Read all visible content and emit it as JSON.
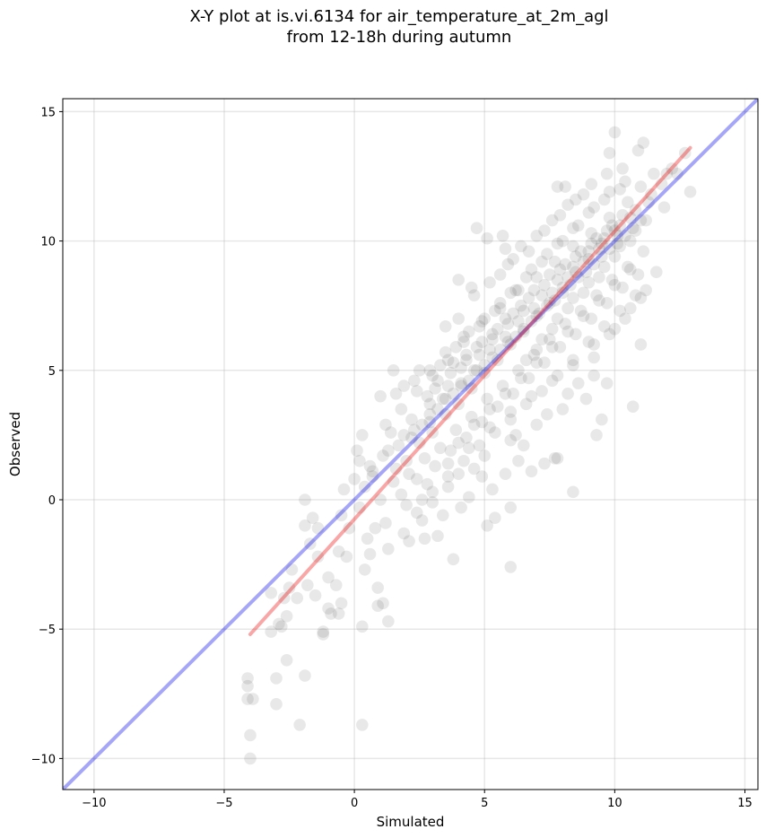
{
  "chart_data": {
    "type": "scatter",
    "title": "X-Y plot at is.vi.6134 for air_temperature_at_2m_agl",
    "subtitle": "from 12-18h during autumn",
    "xlabel": "Simulated",
    "ylabel": "Observed",
    "xlim": [
      -11.2,
      15.5
    ],
    "ylim": [
      -11.2,
      15.5
    ],
    "xticks": [
      -10,
      -5,
      0,
      5,
      10,
      15
    ],
    "yticks": [
      -10,
      -5,
      0,
      5,
      10,
      15
    ],
    "xtick_labels": [
      "−10",
      "−5",
      "0",
      "5",
      "10",
      "15"
    ],
    "ytick_labels": [
      "−10",
      "−5",
      "0",
      "5",
      "10",
      "15"
    ],
    "grid": true,
    "point_color": "#000000",
    "point_opacity": 0.09,
    "identity_line": {
      "color": "#0000ee",
      "opacity": 0.35,
      "from": [
        -11.2,
        -11.2
      ],
      "to": [
        15.5,
        15.5
      ]
    },
    "fit_line": {
      "color": "#ee0000",
      "opacity": 0.35,
      "from": [
        -4.0,
        -5.2
      ],
      "to": [
        12.9,
        13.6
      ]
    },
    "points": [
      [
        -4.0,
        -10.0
      ],
      [
        -4.0,
        -9.1
      ],
      [
        -4.1,
        -7.7
      ],
      [
        -3.9,
        -7.7
      ],
      [
        -4.1,
        -7.2
      ],
      [
        -4.1,
        -6.9
      ],
      [
        -3.0,
        -7.9
      ],
      [
        -2.1,
        -8.7
      ],
      [
        0.3,
        -8.7
      ],
      [
        -2.6,
        -6.2
      ],
      [
        -1.9,
        -6.8
      ],
      [
        -3.0,
        -6.9
      ],
      [
        -3.2,
        -5.1
      ],
      [
        -2.9,
        -4.8
      ],
      [
        -2.8,
        -4.9
      ],
      [
        -2.6,
        -4.5
      ],
      [
        -1.2,
        -5.1
      ],
      [
        -1.2,
        -5.2
      ],
      [
        -0.6,
        -4.4
      ],
      [
        -0.9,
        -4.4
      ],
      [
        -2.5,
        -3.4
      ],
      [
        -3.2,
        -3.6
      ],
      [
        -2.7,
        -3.8
      ],
      [
        -2.2,
        -3.8
      ],
      [
        -1.8,
        -3.3
      ],
      [
        -1.5,
        -3.7
      ],
      [
        -1.0,
        -4.2
      ],
      [
        -0.5,
        -4.0
      ],
      [
        -1.0,
        -3.0
      ],
      [
        -0.7,
        -3.3
      ],
      [
        -2.4,
        -2.7
      ],
      [
        -1.4,
        -2.2
      ],
      [
        -1.7,
        -1.7
      ],
      [
        -1.4,
        -1.1
      ],
      [
        -1.6,
        -0.7
      ],
      [
        -1.9,
        -1.0
      ],
      [
        -1.9,
        0.0
      ],
      [
        -0.6,
        -2.0
      ],
      [
        -0.5,
        -0.6
      ],
      [
        -0.4,
        0.4
      ],
      [
        0.4,
        -2.7
      ],
      [
        0.3,
        -4.9
      ],
      [
        0.9,
        -3.4
      ],
      [
        0.9,
        -4.1
      ],
      [
        1.3,
        -4.7
      ],
      [
        1.1,
        -4.0
      ],
      [
        6.0,
        -2.6
      ],
      [
        8.4,
        0.3
      ],
      [
        10.7,
        3.6
      ],
      [
        11.0,
        6.0
      ],
      [
        11.0,
        7.8
      ],
      [
        12.9,
        11.9
      ],
      [
        7.7,
        1.6
      ],
      [
        9.3,
        2.5
      ],
      [
        9.5,
        3.1
      ],
      [
        0.1,
        1.9
      ],
      [
        0.2,
        1.5
      ],
      [
        0.7,
        1.1
      ],
      [
        0.4,
        0.5
      ],
      [
        0.2,
        -0.3
      ],
      [
        -0.2,
        -1.1
      ],
      [
        0.3,
        2.5
      ],
      [
        1.0,
        4.0
      ],
      [
        1.5,
        5.0
      ],
      [
        1.6,
        4.1
      ],
      [
        4.0,
        8.5
      ],
      [
        4.5,
        8.2
      ],
      [
        4.7,
        10.5
      ],
      [
        5.1,
        10.1
      ],
      [
        5.7,
        10.2
      ],
      [
        5.8,
        9.7
      ],
      [
        6.1,
        9.3
      ],
      [
        7.8,
        12.1
      ],
      [
        8.1,
        12.1
      ],
      [
        10.0,
        14.2
      ],
      [
        9.8,
        13.4
      ],
      [
        10.3,
        12.8
      ],
      [
        10.9,
        13.5
      ],
      [
        11.1,
        13.8
      ],
      [
        12.0,
        12.6
      ],
      [
        12.2,
        12.8
      ],
      [
        12.7,
        13.4
      ],
      [
        8.9,
        3.9
      ],
      [
        9.2,
        4.8
      ],
      [
        9.7,
        4.5
      ],
      [
        6.2,
        2.5
      ],
      [
        6.8,
        1.1
      ],
      [
        7.3,
        1.4
      ],
      [
        7.8,
        1.6
      ],
      [
        5.1,
        -1.0
      ],
      [
        3.8,
        -2.3
      ],
      [
        3.2,
        -1.4
      ],
      [
        2.1,
        -1.6
      ],
      [
        1.3,
        -1.9
      ],
      [
        0.6,
        -2.1
      ],
      [
        2.7,
        -1.5
      ],
      [
        5.4,
        -0.7
      ],
      [
        6.0,
        -0.3
      ],
      [
        5.3,
        0.4
      ],
      [
        4.9,
        0.9
      ],
      [
        6.3,
        1.5
      ],
      [
        4.1,
        -0.3
      ],
      [
        -0.3,
        -2.2
      ],
      [
        0.8,
        -1.1
      ],
      [
        1.9,
        -1.3
      ],
      [
        2.6,
        -0.8
      ],
      [
        3.4,
        -0.6
      ],
      [
        4.4,
        0.1
      ],
      [
        0.7,
        0.9
      ],
      [
        1.1,
        1.7
      ],
      [
        1.4,
        2.6
      ],
      [
        2.2,
        3.1
      ],
      [
        2.9,
        3.7
      ],
      [
        3.6,
        4.4
      ],
      [
        4.1,
        5.1
      ],
      [
        4.8,
        5.6
      ],
      [
        5.3,
        6.2
      ],
      [
        5.9,
        6.8
      ],
      [
        6.5,
        7.3
      ],
      [
        7.2,
        7.9
      ],
      [
        7.8,
        8.5
      ],
      [
        8.4,
        9.0
      ],
      [
        9.0,
        9.6
      ],
      [
        9.6,
        10.1
      ],
      [
        10.2,
        10.6
      ],
      [
        10.8,
        11.2
      ],
      [
        11.4,
        11.8
      ],
      [
        11.8,
        12.2
      ],
      [
        1.8,
        0.2
      ],
      [
        2.4,
        0.8
      ],
      [
        3.1,
        1.3
      ],
      [
        3.7,
        1.9
      ],
      [
        4.3,
        2.4
      ],
      [
        4.9,
        3.0
      ],
      [
        5.5,
        3.6
      ],
      [
        6.1,
        4.1
      ],
      [
        6.7,
        4.7
      ],
      [
        7.3,
        5.3
      ],
      [
        7.9,
        5.9
      ],
      [
        8.5,
        6.4
      ],
      [
        9.1,
        7.0
      ],
      [
        9.7,
        7.6
      ],
      [
        10.3,
        8.2
      ],
      [
        10.9,
        8.7
      ],
      [
        1.2,
        2.9
      ],
      [
        1.8,
        3.5
      ],
      [
        2.4,
        4.2
      ],
      [
        3.0,
        4.8
      ],
      [
        3.6,
        5.4
      ],
      [
        4.2,
        6.1
      ],
      [
        4.8,
        6.7
      ],
      [
        5.4,
        7.3
      ],
      [
        6.0,
        8.0
      ],
      [
        6.6,
        8.6
      ],
      [
        7.2,
        9.2
      ],
      [
        7.8,
        9.9
      ],
      [
        8.4,
        10.5
      ],
      [
        9.0,
        11.1
      ],
      [
        9.6,
        11.6
      ],
      [
        10.2,
        12.0
      ],
      [
        2.0,
        1.5
      ],
      [
        2.5,
        2.2
      ],
      [
        3.0,
        2.6
      ],
      [
        3.5,
        3.3
      ],
      [
        4.0,
        3.7
      ],
      [
        4.5,
        4.3
      ],
      [
        5.0,
        4.9
      ],
      [
        5.5,
        5.4
      ],
      [
        6.0,
        6.0
      ],
      [
        6.5,
        6.5
      ],
      [
        7.0,
        7.1
      ],
      [
        7.5,
        7.6
      ],
      [
        8.0,
        8.2
      ],
      [
        8.5,
        8.8
      ],
      [
        9.0,
        9.3
      ],
      [
        9.5,
        9.9
      ],
      [
        10.0,
        10.4
      ],
      [
        2.8,
        4.0
      ],
      [
        3.3,
        5.2
      ],
      [
        3.9,
        5.9
      ],
      [
        4.4,
        6.5
      ],
      [
        5.0,
        7.0
      ],
      [
        5.6,
        7.6
      ],
      [
        6.2,
        8.1
      ],
      [
        6.8,
        8.9
      ],
      [
        7.4,
        9.5
      ],
      [
        8.0,
        10.0
      ],
      [
        8.6,
        10.6
      ],
      [
        9.2,
        11.3
      ],
      [
        9.8,
        11.9
      ],
      [
        10.4,
        12.3
      ],
      [
        1.5,
        0.7
      ],
      [
        2.1,
        1.0
      ],
      [
        2.7,
        1.6
      ],
      [
        3.3,
        2.0
      ],
      [
        3.9,
        2.7
      ],
      [
        4.5,
        3.2
      ],
      [
        5.1,
        3.9
      ],
      [
        5.7,
        4.4
      ],
      [
        6.3,
        5.0
      ],
      [
        6.9,
        5.6
      ],
      [
        7.5,
        6.2
      ],
      [
        8.1,
        6.8
      ],
      [
        8.7,
        7.3
      ],
      [
        9.3,
        7.9
      ],
      [
        9.9,
        8.5
      ],
      [
        10.5,
        9.0
      ],
      [
        11.1,
        9.6
      ],
      [
        3.5,
        6.7
      ],
      [
        4.0,
        7.0
      ],
      [
        5.6,
        8.7
      ],
      [
        6.4,
        9.8
      ],
      [
        7.0,
        10.2
      ],
      [
        7.6,
        10.8
      ],
      [
        8.2,
        11.4
      ],
      [
        8.8,
        11.8
      ],
      [
        3.0,
        0.3
      ],
      [
        4.0,
        1.0
      ],
      [
        5.0,
        1.7
      ],
      [
        6.0,
        2.3
      ],
      [
        7.0,
        2.9
      ],
      [
        8.0,
        3.5
      ],
      [
        8.6,
        4.5
      ],
      [
        9.2,
        5.5
      ],
      [
        9.8,
        6.4
      ],
      [
        10.4,
        7.0
      ],
      [
        5.8,
        1.0
      ],
      [
        6.5,
        2.1
      ],
      [
        7.4,
        3.3
      ],
      [
        8.2,
        4.1
      ],
      [
        2.6,
        0.0
      ],
      [
        3.6,
        0.5
      ],
      [
        4.6,
        1.2
      ],
      [
        1.0,
        0.0
      ],
      [
        1.6,
        1.2
      ],
      [
        2.2,
        2.4
      ],
      [
        2.9,
        3.0
      ],
      [
        3.4,
        3.9
      ],
      [
        4.1,
        4.5
      ],
      [
        4.6,
        5.0
      ],
      [
        5.2,
        5.8
      ],
      [
        5.8,
        6.3
      ],
      [
        6.3,
        6.9
      ],
      [
        6.9,
        7.4
      ],
      [
        7.6,
        8.0
      ],
      [
        8.2,
        8.6
      ],
      [
        8.8,
        9.2
      ],
      [
        9.4,
        9.7
      ],
      [
        10.1,
        10.2
      ],
      [
        10.6,
        10.9
      ],
      [
        11.3,
        11.5
      ],
      [
        4.3,
        5.4
      ],
      [
        4.7,
        5.9
      ],
      [
        5.3,
        6.4
      ],
      [
        5.8,
        7.0
      ],
      [
        6.4,
        7.5
      ],
      [
        6.9,
        8.1
      ],
      [
        7.5,
        8.7
      ],
      [
        8.1,
        9.1
      ],
      [
        8.7,
        9.6
      ],
      [
        9.3,
        10.1
      ],
      [
        9.9,
        10.6
      ],
      [
        0.5,
        -1.5
      ],
      [
        1.2,
        -0.9
      ],
      [
        2.0,
        -0.2
      ],
      [
        2.8,
        0.6
      ],
      [
        3.6,
        1.4
      ],
      [
        4.4,
        2.0
      ],
      [
        5.2,
        2.8
      ],
      [
        6.0,
        3.4
      ],
      [
        6.8,
        4.0
      ],
      [
        7.6,
        4.6
      ],
      [
        8.4,
        5.2
      ],
      [
        9.2,
        6.0
      ],
      [
        10.0,
        6.6
      ],
      [
        10.6,
        7.4
      ],
      [
        11.2,
        8.1
      ],
      [
        11.6,
        8.8
      ],
      [
        2.3,
        4.6
      ],
      [
        2.9,
        5.0
      ],
      [
        3.5,
        5.7
      ],
      [
        4.2,
        6.3
      ],
      [
        4.9,
        6.9
      ],
      [
        5.6,
        7.4
      ],
      [
        6.3,
        8.1
      ],
      [
        7.0,
        8.6
      ],
      [
        7.7,
        9.2
      ],
      [
        8.4,
        9.8
      ],
      [
        9.1,
        10.3
      ],
      [
        9.8,
        10.9
      ],
      [
        10.5,
        11.5
      ],
      [
        11.0,
        12.1
      ],
      [
        0.0,
        0.8
      ],
      [
        0.6,
        1.3
      ],
      [
        1.3,
        1.9
      ],
      [
        1.9,
        2.5
      ],
      [
        2.6,
        2.9
      ],
      [
        3.2,
        3.5
      ],
      [
        3.8,
        4.1
      ],
      [
        4.4,
        4.6
      ],
      [
        5.0,
        5.2
      ],
      [
        5.6,
        5.8
      ],
      [
        6.2,
        6.3
      ],
      [
        6.8,
        6.9
      ],
      [
        7.4,
        7.5
      ],
      [
        8.0,
        8.0
      ],
      [
        8.6,
        8.6
      ],
      [
        9.2,
        9.1
      ],
      [
        9.8,
        9.7
      ],
      [
        10.4,
        10.2
      ],
      [
        11.0,
        10.8
      ],
      [
        7.0,
        5.8
      ],
      [
        7.6,
        6.6
      ],
      [
        8.2,
        7.4
      ],
      [
        8.8,
        8.0
      ],
      [
        9.4,
        8.6
      ],
      [
        10.0,
        9.4
      ],
      [
        10.6,
        10.0
      ],
      [
        11.2,
        10.8
      ],
      [
        6.6,
        5.4
      ],
      [
        7.2,
        6.2
      ],
      [
        7.8,
        7.0
      ],
      [
        8.4,
        7.8
      ],
      [
        9.0,
        8.4
      ],
      [
        9.6,
        9.0
      ],
      [
        10.2,
        9.8
      ],
      [
        10.8,
        10.4
      ],
      [
        3.1,
        4.3
      ],
      [
        3.7,
        4.9
      ],
      [
        4.3,
        5.6
      ],
      [
        4.9,
        6.1
      ],
      [
        5.5,
        6.6
      ],
      [
        6.1,
        7.2
      ],
      [
        6.7,
        7.8
      ],
      [
        7.3,
        8.3
      ],
      [
        7.9,
        8.9
      ],
      [
        8.5,
        9.4
      ],
      [
        9.1,
        9.9
      ],
      [
        9.7,
        10.4
      ],
      [
        10.3,
        11.0
      ],
      [
        1.7,
        2.1
      ],
      [
        2.3,
        2.7
      ],
      [
        2.9,
        3.3
      ],
      [
        3.5,
        3.9
      ],
      [
        4.1,
        4.4
      ],
      [
        4.7,
        5.0
      ],
      [
        5.3,
        5.5
      ],
      [
        5.9,
        6.1
      ],
      [
        6.5,
        6.6
      ],
      [
        7.1,
        7.2
      ],
      [
        7.7,
        7.7
      ],
      [
        8.3,
        8.3
      ],
      [
        8.9,
        8.8
      ],
      [
        9.5,
        9.4
      ],
      [
        10.1,
        9.9
      ],
      [
        10.7,
        10.5
      ],
      [
        12.4,
        12.6
      ],
      [
        11.9,
        11.3
      ],
      [
        11.5,
        12.6
      ],
      [
        1.9,
        4.4
      ],
      [
        2.5,
        5.0
      ],
      [
        3.2,
        4.6
      ],
      [
        3.8,
        5.3
      ],
      [
        4.6,
        7.9
      ],
      [
        5.2,
        8.4
      ],
      [
        5.9,
        9.1
      ],
      [
        6.7,
        9.6
      ],
      [
        7.3,
        10.4
      ],
      [
        7.9,
        11.0
      ],
      [
        8.5,
        11.6
      ],
      [
        9.1,
        12.2
      ],
      [
        9.7,
        12.6
      ],
      [
        4.0,
        2.2
      ],
      [
        4.6,
        2.9
      ],
      [
        5.2,
        3.5
      ],
      [
        5.8,
        4.1
      ],
      [
        6.4,
        4.7
      ],
      [
        7.0,
        5.3
      ],
      [
        7.6,
        5.9
      ],
      [
        8.2,
        6.5
      ],
      [
        8.8,
        7.1
      ],
      [
        9.4,
        7.7
      ],
      [
        10.0,
        8.3
      ],
      [
        10.6,
        8.9
      ],
      [
        2.4,
        -0.5
      ],
      [
        3.0,
        -0.1
      ],
      [
        3.6,
        0.9
      ],
      [
        4.2,
        1.5
      ],
      [
        4.8,
        2.1
      ],
      [
        5.4,
        2.6
      ],
      [
        6.0,
        3.1
      ],
      [
        6.6,
        3.7
      ],
      [
        7.2,
        4.2
      ],
      [
        7.8,
        4.8
      ],
      [
        8.4,
        5.4
      ],
      [
        9.0,
        6.1
      ],
      [
        9.6,
        6.7
      ],
      [
        10.2,
        7.3
      ],
      [
        10.8,
        7.9
      ]
    ]
  }
}
